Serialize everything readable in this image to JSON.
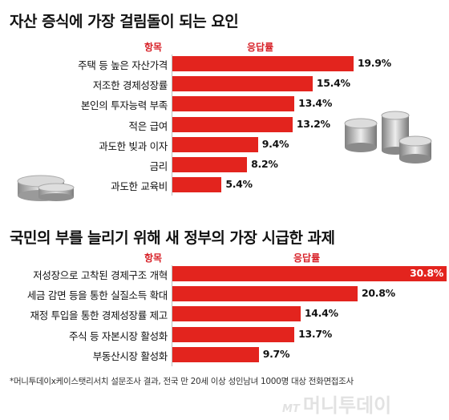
{
  "chart_data": [
    {
      "type": "bar",
      "orientation": "horizontal",
      "title": "자산 증식에 가장 걸림돌이 되는 요인",
      "column_headers": {
        "category": "항목",
        "value": "응답률"
      },
      "categories": [
        "주택 등 높은 자산가격",
        "저조한 경제성장률",
        "본인의 투자능력 부족",
        "적은 급여",
        "과도한 빚과 이자",
        "금리",
        "과도한 교육비"
      ],
      "values": [
        19.9,
        15.4,
        13.4,
        13.2,
        9.4,
        8.2,
        5.4
      ],
      "value_labels": [
        "19.9%",
        "15.4%",
        "13.4%",
        "13.2%",
        "9.4%",
        "8.2%",
        "5.4%"
      ],
      "bar_color": "#e3241e"
    },
    {
      "type": "bar",
      "orientation": "horizontal",
      "title": "국민의 부를 늘리기 위해 새 정부의 가장 시급한 과제",
      "column_headers": {
        "category": "항목",
        "value": "응답률"
      },
      "categories": [
        "저성장으로 고착된 경제구조 개혁",
        "세금 감면 등을 통한 실질소득 확대",
        "재정 투입을 통한 경제성장률 제고",
        "주식 등 자본시장 활성화",
        "부동산시장 활성화"
      ],
      "values": [
        30.8,
        20.8,
        14.4,
        13.7,
        9.7
      ],
      "value_labels": [
        "30.8%",
        "20.8%",
        "14.4%",
        "13.7%",
        "9.7%"
      ],
      "bar_color": "#e3241e"
    }
  ],
  "footnote": "*머니투데이x케이스탯리서치 설문조사 결과, 전국 만 20세 이상 성인남녀 1000명 대상 전화면접조사",
  "logo": {
    "mark": "MT",
    "name": "머니투데이"
  }
}
